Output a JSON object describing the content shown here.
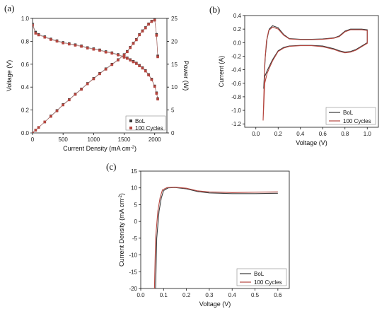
{
  "colors": {
    "bol": "#3a3a3a",
    "cycles": "#b5463f",
    "axis": "#111111"
  },
  "chart_data": [
    {
      "panel_label": "(a)",
      "type": "scatter",
      "xlabel": "Current Density (mA cm",
      "xlabel_sup": "-2",
      "xlabel_close": ")",
      "ylabel": "Voltage (V)",
      "ylabel_right": "Power (W)",
      "xlim": [
        0,
        2200
      ],
      "ylim": [
        0,
        1.0
      ],
      "ylim_right": [
        0,
        25
      ],
      "xticks": [
        "0",
        "500",
        "1000",
        "1500",
        "2000"
      ],
      "xtick_values": [
        0,
        500,
        1000,
        1500,
        2000
      ],
      "yticks": [
        "0.0",
        "0.2",
        "0.4",
        "0.6",
        "0.8",
        "1.0"
      ],
      "ytick_values": [
        0,
        0.2,
        0.4,
        0.6,
        0.8,
        1.0
      ],
      "yticks_right": [
        "0",
        "5",
        "10",
        "15",
        "20",
        "25"
      ],
      "ytick_right_values": [
        0,
        5,
        10,
        15,
        20,
        25
      ],
      "legend": [
        "BoL",
        "100 Cycles"
      ],
      "legend_position": "bottom-right",
      "series": [
        {
          "name": "BoL",
          "axis": "left",
          "x": [
            0,
            50,
            100,
            200,
            300,
            400,
            500,
            600,
            700,
            800,
            900,
            1000,
            1100,
            1200,
            1300,
            1400,
            1500,
            1550,
            1600,
            1650,
            1700,
            1750,
            1800,
            1850,
            1900,
            1950,
            2000,
            2030,
            2050
          ],
          "y": [
            0.95,
            0.88,
            0.86,
            0.84,
            0.82,
            0.805,
            0.79,
            0.78,
            0.77,
            0.76,
            0.745,
            0.735,
            0.725,
            0.71,
            0.7,
            0.685,
            0.665,
            0.655,
            0.64,
            0.625,
            0.61,
            0.59,
            0.57,
            0.545,
            0.51,
            0.47,
            0.41,
            0.35,
            0.3
          ]
        },
        {
          "name": "100 Cycles",
          "axis": "left",
          "x": [
            0,
            50,
            100,
            200,
            300,
            400,
            500,
            600,
            700,
            800,
            900,
            1000,
            1100,
            1200,
            1300,
            1400,
            1500,
            1550,
            1600,
            1650,
            1700,
            1750,
            1800,
            1850,
            1900,
            1950,
            2000,
            2030,
            2050
          ],
          "y": [
            0.94,
            0.87,
            0.855,
            0.835,
            0.815,
            0.8,
            0.785,
            0.775,
            0.765,
            0.755,
            0.74,
            0.73,
            0.72,
            0.705,
            0.695,
            0.68,
            0.66,
            0.65,
            0.635,
            0.62,
            0.605,
            0.585,
            0.565,
            0.54,
            0.505,
            0.465,
            0.405,
            0.345,
            0.295
          ]
        },
        {
          "name": "BoL",
          "axis": "right",
          "x": [
            0,
            50,
            100,
            200,
            300,
            400,
            500,
            600,
            700,
            800,
            900,
            1000,
            1100,
            1200,
            1300,
            1400,
            1500,
            1550,
            1600,
            1650,
            1700,
            1750,
            1800,
            1850,
            1900,
            1950,
            2000,
            2030,
            2050
          ],
          "y": [
            0,
            0.6,
            1.2,
            2.4,
            3.7,
            4.9,
            6.2,
            7.3,
            8.5,
            9.6,
            10.8,
            11.9,
            13.0,
            14.0,
            15.0,
            16.0,
            17.1,
            17.8,
            18.7,
            19.6,
            20.4,
            21.5,
            22.3,
            23.0,
            23.8,
            24.4,
            24.8,
            21.5,
            16.8
          ]
        },
        {
          "name": "100 Cycles",
          "axis": "right",
          "x": [
            0,
            50,
            100,
            200,
            300,
            400,
            500,
            600,
            700,
            800,
            900,
            1000,
            1100,
            1200,
            1300,
            1400,
            1500,
            1550,
            1600,
            1650,
            1700,
            1750,
            1800,
            1850,
            1900,
            1950,
            2000,
            2030,
            2050
          ],
          "y": [
            0,
            0.6,
            1.2,
            2.4,
            3.6,
            4.8,
            6.1,
            7.2,
            8.4,
            9.5,
            10.7,
            11.8,
            12.9,
            13.9,
            14.9,
            15.9,
            17.0,
            17.7,
            18.6,
            19.5,
            20.3,
            21.4,
            22.2,
            22.9,
            23.7,
            24.3,
            24.6,
            21.3,
            16.6
          ]
        }
      ]
    },
    {
      "panel_label": "(b)",
      "type": "line",
      "xlabel": "Voltage (V)",
      "ylabel": "Current (A)",
      "xlim": [
        -0.1,
        1.1
      ],
      "ylim": [
        -1.25,
        0.4
      ],
      "xticks": [
        "0.0",
        "0.2",
        "0.4",
        "0.6",
        "0.8",
        "1.0"
      ],
      "xtick_values": [
        0,
        0.2,
        0.4,
        0.6,
        0.8,
        1.0
      ],
      "yticks": [
        "0.4",
        "0.2",
        "0.0",
        "-0.2",
        "-0.4",
        "-0.6",
        "-0.8",
        "-1.0",
        "-1.2"
      ],
      "ytick_values": [
        0.4,
        0.2,
        0,
        -0.2,
        -0.4,
        -0.6,
        -0.8,
        -1.0,
        -1.2
      ],
      "legend": [
        "BoL",
        "100 Cycles"
      ],
      "legend_position": "bottom-right",
      "series": [
        {
          "name": "BoL",
          "x": [
            0.07,
            0.085,
            0.1,
            0.12,
            0.15,
            0.2,
            0.25,
            0.3,
            0.4,
            0.5,
            0.6,
            0.7,
            0.75,
            0.8,
            0.85,
            0.9,
            0.95,
            1.0,
            1.0,
            0.95,
            0.9,
            0.85,
            0.8,
            0.75,
            0.7,
            0.6,
            0.5,
            0.4,
            0.3,
            0.25,
            0.2,
            0.15,
            0.12,
            0.1,
            0.08,
            0.07
          ],
          "y": [
            -0.68,
            -0.2,
            0.05,
            0.2,
            0.25,
            0.22,
            0.12,
            0.06,
            0.05,
            0.05,
            0.055,
            0.07,
            0.1,
            0.17,
            0.2,
            0.2,
            0.2,
            0.19,
            0.0,
            -0.05,
            -0.1,
            -0.13,
            -0.14,
            -0.12,
            -0.09,
            -0.05,
            -0.04,
            -0.04,
            -0.05,
            -0.07,
            -0.12,
            -0.25,
            -0.35,
            -0.42,
            -0.5,
            -0.68
          ]
        },
        {
          "name": "100 Cycles",
          "x": [
            0.065,
            0.08,
            0.095,
            0.115,
            0.15,
            0.2,
            0.25,
            0.3,
            0.4,
            0.5,
            0.6,
            0.7,
            0.75,
            0.8,
            0.85,
            0.9,
            0.95,
            1.0,
            1.0,
            0.95,
            0.9,
            0.85,
            0.8,
            0.75,
            0.7,
            0.6,
            0.5,
            0.4,
            0.3,
            0.25,
            0.2,
            0.15,
            0.12,
            0.1,
            0.08,
            0.065
          ],
          "y": [
            -1.15,
            -0.3,
            0.02,
            0.18,
            0.23,
            0.2,
            0.11,
            0.055,
            0.045,
            0.045,
            0.05,
            0.065,
            0.09,
            0.16,
            0.19,
            0.19,
            0.19,
            0.18,
            -0.01,
            -0.06,
            -0.11,
            -0.14,
            -0.15,
            -0.13,
            -0.1,
            -0.06,
            -0.045,
            -0.045,
            -0.055,
            -0.08,
            -0.13,
            -0.27,
            -0.38,
            -0.46,
            -0.6,
            -1.15
          ]
        }
      ]
    },
    {
      "panel_label": "(c)",
      "type": "line",
      "xlabel": "Voltage (V)",
      "ylabel": "Current Density (mA cm",
      "ylabel_sup": "-2",
      "ylabel_close": ")",
      "xlim": [
        0.0,
        0.65
      ],
      "ylim": [
        -20,
        15
      ],
      "xticks": [
        "0.0",
        "0.1",
        "0.2",
        "0.3",
        "0.4",
        "0.5",
        "0.6"
      ],
      "xtick_values": [
        0,
        0.1,
        0.2,
        0.3,
        0.4,
        0.5,
        0.6
      ],
      "yticks": [
        "15",
        "10",
        "5",
        "0",
        "-5",
        "-10",
        "-15",
        "-20"
      ],
      "ytick_values": [
        15,
        10,
        5,
        0,
        -5,
        -10,
        -15,
        -20
      ],
      "legend": [
        "BoL",
        "100 Cycles"
      ],
      "legend_position": "bottom-right",
      "series": [
        {
          "name": "BoL",
          "x": [
            0.065,
            0.07,
            0.08,
            0.09,
            0.1,
            0.12,
            0.15,
            0.2,
            0.25,
            0.3,
            0.4,
            0.5,
            0.6
          ],
          "y": [
            -20,
            -5,
            3,
            7,
            9.2,
            10.0,
            10.1,
            9.7,
            8.9,
            8.5,
            8.3,
            8.3,
            8.4
          ]
        },
        {
          "name": "100 Cycles",
          "x": [
            0.06,
            0.065,
            0.075,
            0.085,
            0.095,
            0.115,
            0.15,
            0.2,
            0.25,
            0.3,
            0.4,
            0.5,
            0.6
          ],
          "y": [
            -20,
            -5,
            3.2,
            7.2,
            9.4,
            10.1,
            10.2,
            9.9,
            9.1,
            8.8,
            8.6,
            8.7,
            8.8
          ]
        }
      ]
    }
  ]
}
